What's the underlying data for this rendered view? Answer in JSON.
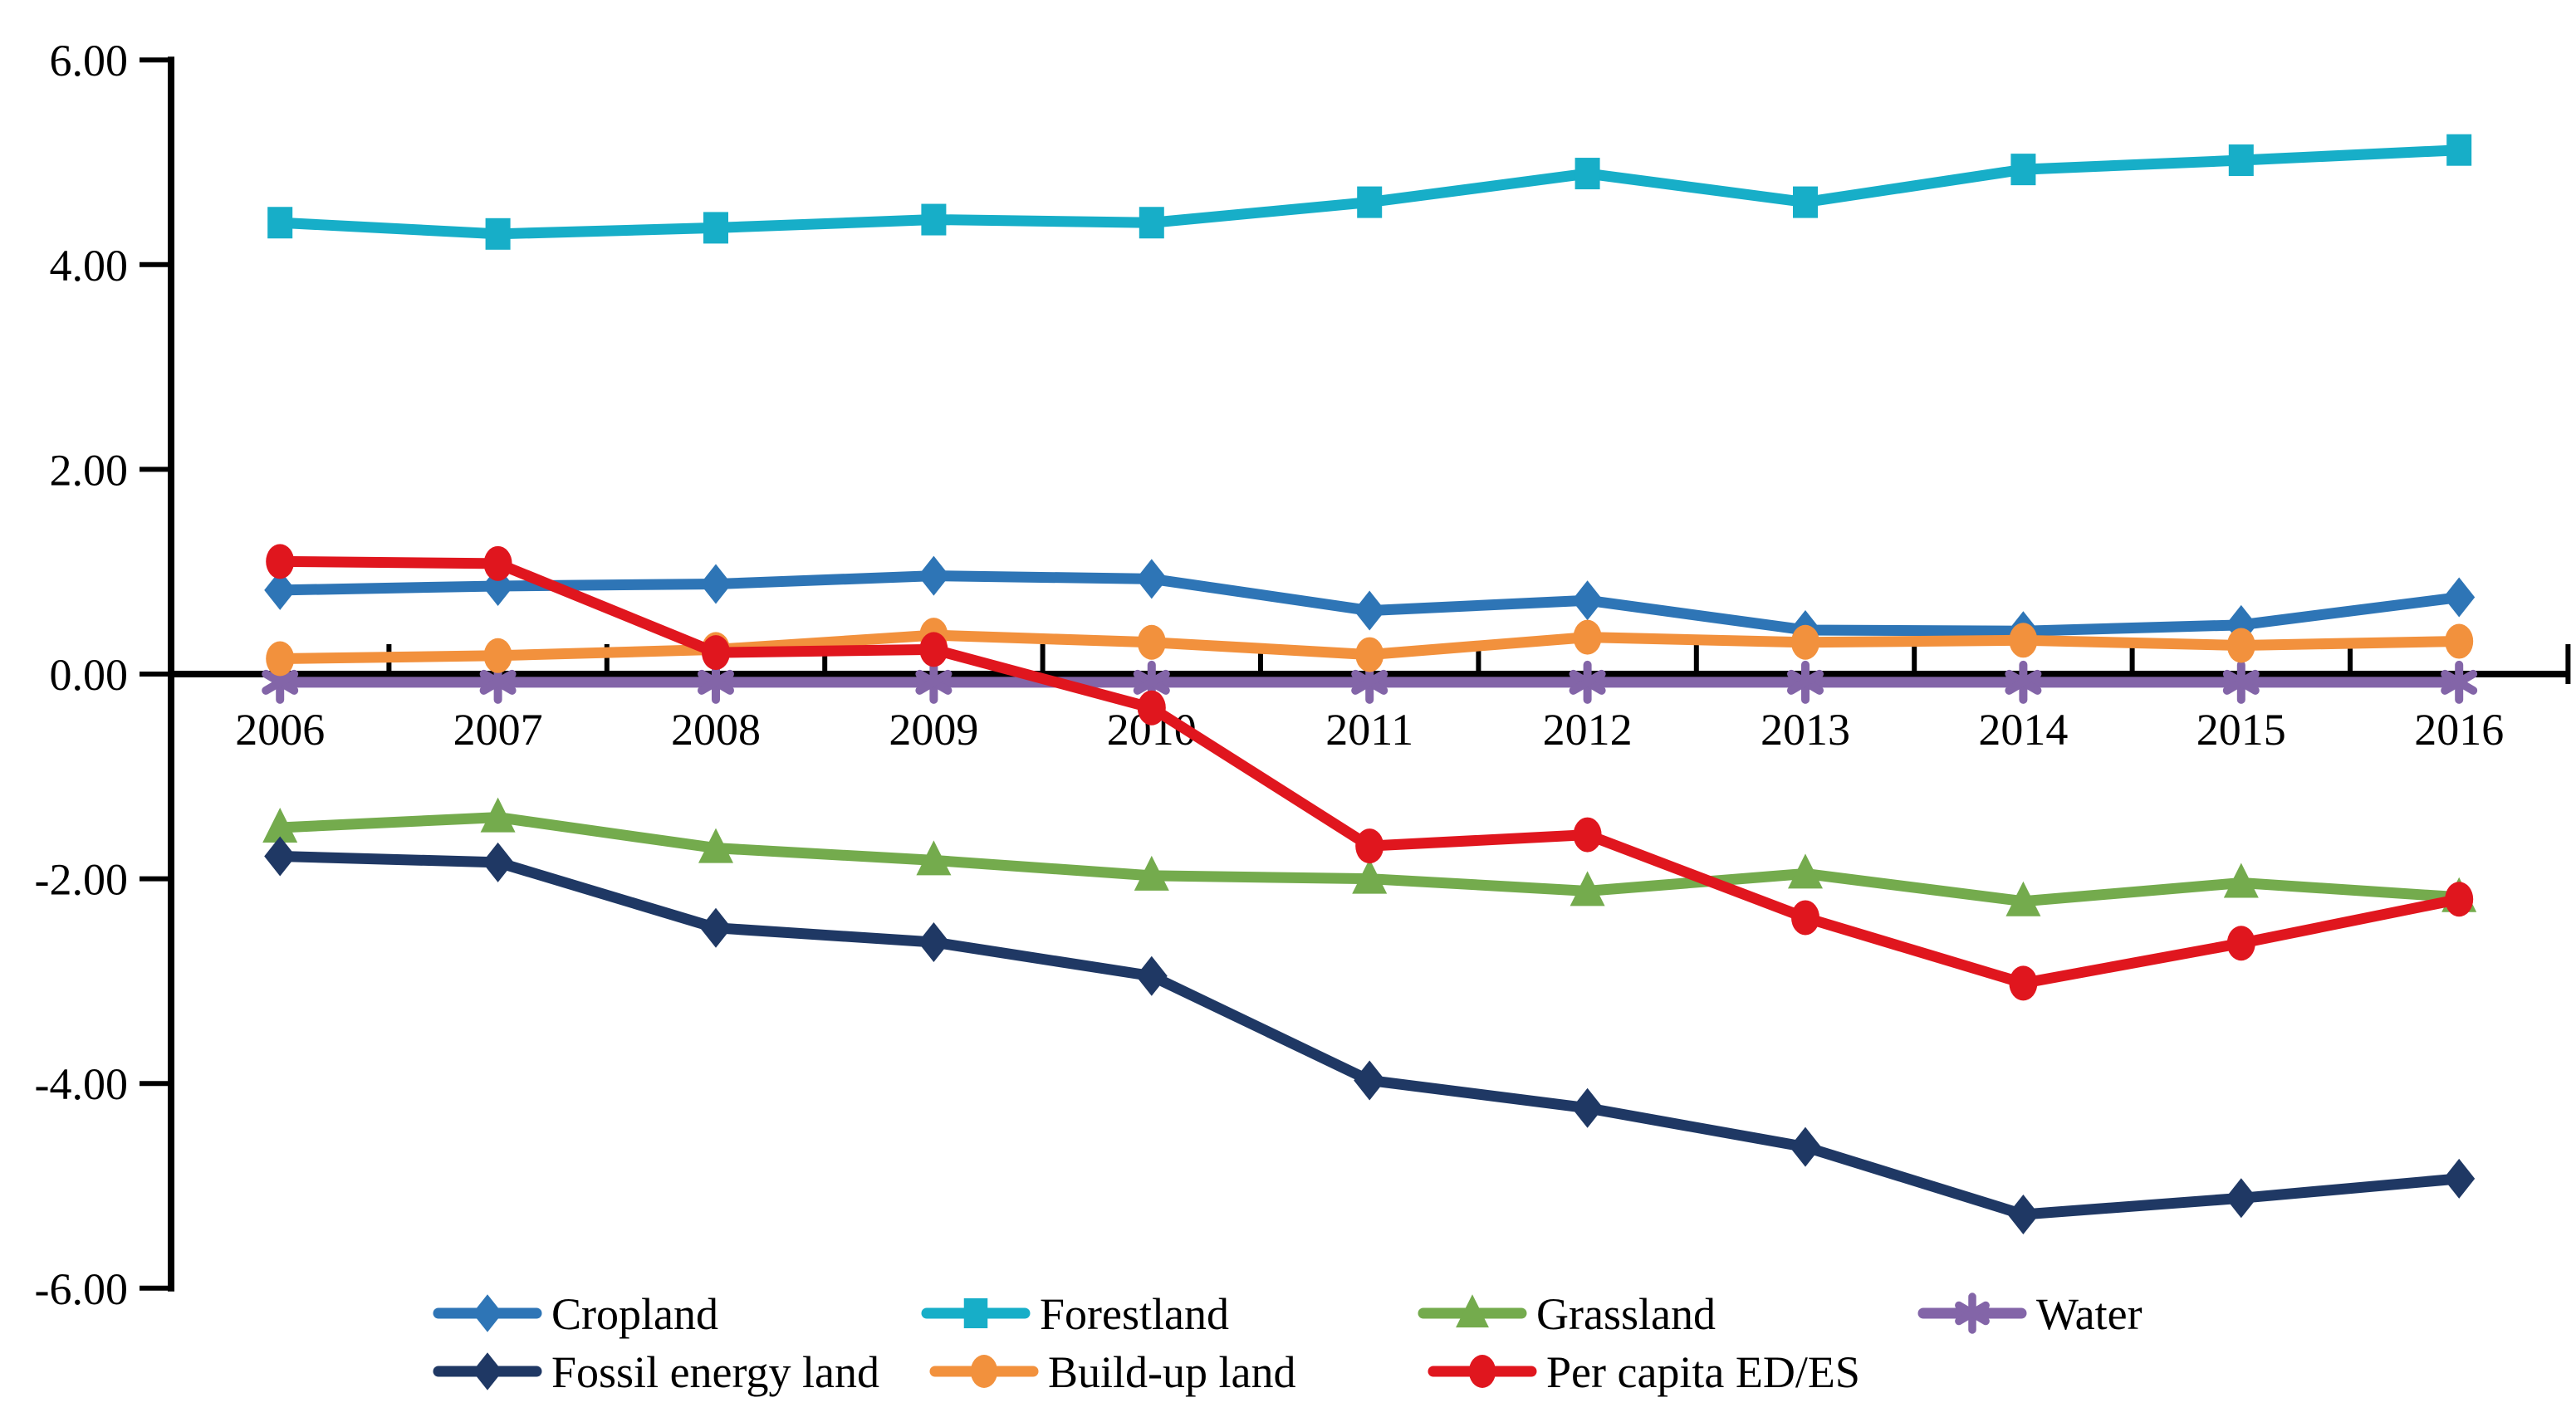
{
  "chart_data": {
    "type": "line",
    "title": "",
    "xlabel": "",
    "ylabel": "",
    "ylim": [
      -6,
      6
    ],
    "grid": false,
    "legend_position": "bottom",
    "x": [
      "2006",
      "2007",
      "2008",
      "2009",
      "2010",
      "2011",
      "2012",
      "2013",
      "2014",
      "2015",
      "2016"
    ],
    "y_tick_labels": [
      "6.00",
      "4.00",
      "2.00",
      "0.00",
      "-2.00",
      "-4.00",
      "-6.00"
    ],
    "axis_color": "#000000",
    "series": [
      {
        "name": "Cropland",
        "color": "#2E75B6",
        "marker": "diamond",
        "values": [
          0.82,
          0.86,
          0.88,
          0.96,
          0.93,
          0.62,
          0.72,
          0.43,
          0.42,
          0.48,
          0.75
        ]
      },
      {
        "name": "Forestland",
        "color": "#17AEC8",
        "marker": "square",
        "values": [
          4.41,
          4.3,
          4.36,
          4.44,
          4.41,
          4.61,
          4.89,
          4.61,
          4.93,
          5.02,
          5.12
        ]
      },
      {
        "name": "Grassland",
        "color": "#74AB4D",
        "marker": "triangle",
        "values": [
          -1.5,
          -1.4,
          -1.7,
          -1.82,
          -1.97,
          -2.0,
          -2.12,
          -1.95,
          -2.22,
          -2.04,
          -2.18
        ]
      },
      {
        "name": "Water",
        "color": "#8365A8",
        "marker": "asterisk",
        "values": [
          -0.08,
          -0.08,
          -0.08,
          -0.08,
          -0.08,
          -0.08,
          -0.08,
          -0.08,
          -0.08,
          -0.08,
          -0.08
        ]
      },
      {
        "name": "Fossil energy land",
        "color": "#1F3864",
        "marker": "diamond",
        "values": [
          -1.78,
          -1.84,
          -2.48,
          -2.62,
          -2.95,
          -3.97,
          -4.24,
          -4.62,
          -5.28,
          -5.12,
          -4.93
        ]
      },
      {
        "name": "Build-up land",
        "color": "#F2913D",
        "marker": "circle",
        "values": [
          0.15,
          0.18,
          0.24,
          0.38,
          0.31,
          0.19,
          0.36,
          0.31,
          0.33,
          0.28,
          0.32
        ]
      },
      {
        "name": "Per capita ED/ES",
        "color": "#E0161E",
        "marker": "circle",
        "values": [
          1.1,
          1.08,
          0.21,
          0.24,
          -0.33,
          -1.68,
          -1.57,
          -2.38,
          -3.02,
          -2.63,
          -2.2
        ]
      }
    ],
    "legend_rows": [
      [
        "Cropland",
        "Forestland",
        "Grassland",
        "Water"
      ],
      [
        "Fossil energy land",
        "Build-up land",
        "Per capita ED/ES"
      ]
    ]
  }
}
